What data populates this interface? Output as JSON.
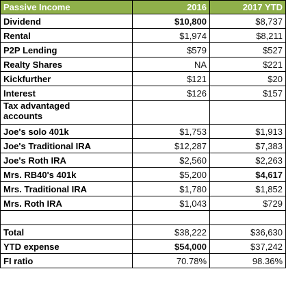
{
  "table": {
    "header": [
      "Passive Income",
      "2016",
      "2017 YTD"
    ],
    "rows": [
      [
        "Dividend",
        "$10,800",
        "$8,737"
      ],
      [
        "Rental",
        "$1,974",
        "$8,211"
      ],
      [
        "P2P Lending",
        "$579",
        "$527"
      ],
      [
        "Realty Shares",
        "NA",
        "$221"
      ],
      [
        "Kickfurther",
        "$121",
        "$20"
      ],
      [
        "Interest",
        "$126",
        "$157"
      ],
      [
        "Tax advantaged accounts",
        null,
        null
      ],
      [
        "Joe's solo 401k",
        "$1,753",
        "$1,913"
      ],
      [
        "Joe's Traditional IRA",
        "$12,287",
        "$7,383"
      ],
      [
        "Joe's Roth IRA",
        "$2,560",
        "$2,263"
      ],
      [
        "Mrs. RB40's 401k",
        "$5,200",
        "$4,617"
      ],
      [
        "Mrs. Traditional IRA",
        "$1,780",
        "$1,852"
      ],
      [
        "Mrs. Roth IRA",
        "$1,043",
        "$729"
      ],
      [
        null,
        null,
        null
      ],
      [
        "Total",
        "$38,222",
        "$36,630"
      ],
      [
        "YTD expense",
        "$54,000",
        "$37,242"
      ],
      [
        "FI ratio",
        "70.78%",
        "98.36%"
      ]
    ]
  }
}
